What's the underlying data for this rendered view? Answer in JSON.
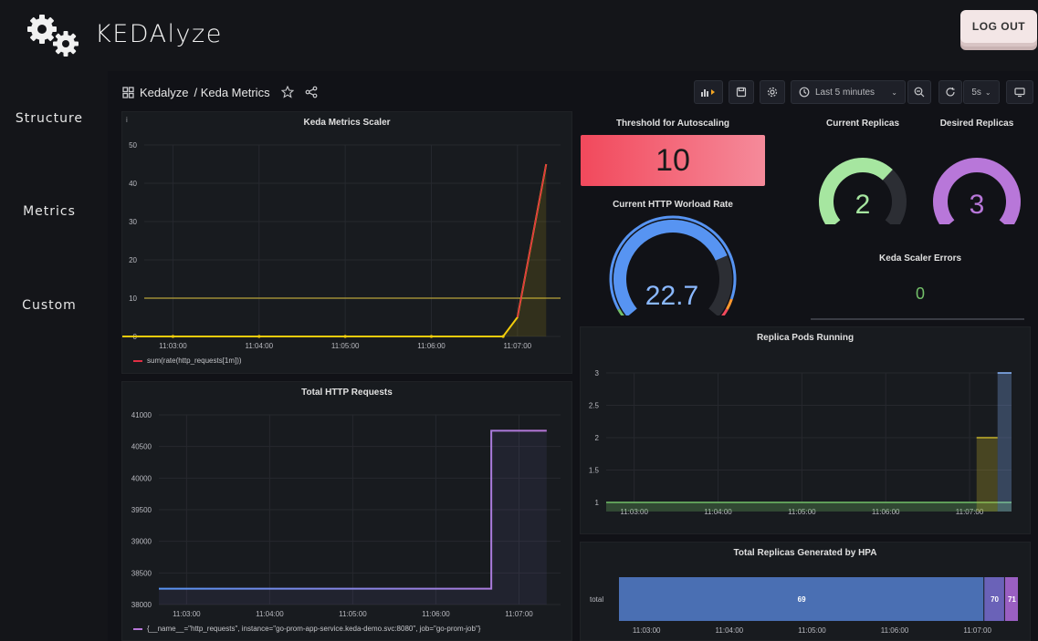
{
  "app": {
    "name": "KEDAlyze",
    "logout_label": "LOG OUT"
  },
  "sidebar": {
    "items": [
      {
        "label": "Structure"
      },
      {
        "label": "Metrics"
      },
      {
        "label": "Custom"
      }
    ]
  },
  "breadcrumb": {
    "folder": "Kedalyze",
    "dashboard": "/ Keda Metrics"
  },
  "toolbar": {
    "time_range": "Last 5 minutes",
    "refresh_interval": "5s"
  },
  "panels": {
    "scaler": {
      "title": "Keda Metrics Scaler",
      "legend": "sum(rate(http_requests[1m]))",
      "colors": {
        "series": "#f2cc0c",
        "spike": "#e02f44",
        "threshold": "#b8a33a"
      }
    },
    "threshold": {
      "title": "Threshold for Autoscaling",
      "value": "10"
    },
    "workload": {
      "title": "Current HTTP Worload Rate",
      "value": "22.7"
    },
    "current_replicas": {
      "title": "Current Replicas",
      "value": "2",
      "color": "#a6e6a0"
    },
    "desired_replicas": {
      "title": "Desired Replicas",
      "value": "3",
      "color": "#b877d9"
    },
    "errors": {
      "title": "Keda Scaler Errors",
      "value": "0"
    },
    "total_http": {
      "title": "Total HTTP Requests",
      "legend": "{__name__=\"http_requests\", instance=\"go-prom-app-service.keda-demo.svc:8080\", job=\"go-prom-job\"}"
    },
    "replica_pods": {
      "title": "Replica Pods Running"
    },
    "total_replicas": {
      "title": "Total Replicas Generated by HPA",
      "row_label": "total"
    }
  },
  "chart_data": [
    {
      "type": "line",
      "title": "Keda Metrics Scaler",
      "x_ticks": [
        "11:03:00",
        "11:04:00",
        "11:05:00",
        "11:06:00",
        "11:07:00"
      ],
      "ylim": [
        0,
        50
      ],
      "y_ticks": [
        0,
        10,
        20,
        30,
        40,
        50
      ],
      "threshold": 10,
      "series": [
        {
          "name": "sum(rate(http_requests[1m]))",
          "points": [
            [
              "11:02:00",
              0
            ],
            [
              "11:03:00",
              0
            ],
            [
              "11:04:00",
              0
            ],
            [
              "11:05:00",
              0
            ],
            [
              "11:06:00",
              0
            ],
            [
              "11:06:50",
              0
            ],
            [
              "11:07:00",
              5
            ],
            [
              "11:07:10",
              25
            ],
            [
              "11:07:20",
              45
            ]
          ]
        }
      ]
    },
    {
      "type": "line",
      "title": "Total HTTP Requests",
      "x_ticks": [
        "11:03:00",
        "11:04:00",
        "11:05:00",
        "11:06:00",
        "11:07:00"
      ],
      "ylim": [
        38000,
        41000
      ],
      "y_ticks": [
        38000,
        38500,
        39000,
        39500,
        40000,
        40500,
        41000
      ],
      "series": [
        {
          "name": "{__name__=\"http_requests\", instance=\"go-prom-app-service.keda-demo.svc:8080\", job=\"go-prom-job\"}",
          "points": [
            [
              "11:02:40",
              38250
            ],
            [
              "11:06:40",
              38250
            ],
            [
              "11:06:40",
              40750
            ],
            [
              "11:07:20",
              40750
            ]
          ]
        }
      ]
    },
    {
      "type": "area",
      "title": "Replica Pods Running",
      "x_ticks": [
        "11:03:00",
        "11:04:00",
        "11:05:00",
        "11:06:00",
        "11:07:00"
      ],
      "ylim": [
        1,
        3
      ],
      "y_ticks": [
        1,
        1.5,
        2,
        2.5,
        3
      ],
      "series": [
        {
          "points": [
            [
              "11:02:40",
              1
            ],
            [
              "11:07:05",
              1
            ],
            [
              "11:07:30",
              1
            ]
          ]
        },
        {
          "points": [
            [
              "11:07:05",
              2
            ],
            [
              "11:07:20",
              2
            ]
          ]
        },
        {
          "points": [
            [
              "11:07:20",
              3
            ],
            [
              "11:07:30",
              3
            ]
          ]
        }
      ]
    },
    {
      "type": "bar",
      "title": "Total Replicas Generated by HPA",
      "categories": [
        "total"
      ],
      "segments": [
        {
          "label": "69",
          "value": 69
        },
        {
          "label": "70",
          "value": 70
        },
        {
          "label": "71",
          "value": 71
        }
      ],
      "x_ticks": [
        "11:03:00",
        "11:04:00",
        "11:05:00",
        "11:06:00",
        "11:07:00"
      ]
    }
  ],
  "gauges": {
    "workload": {
      "value": 22.7,
      "min": 0,
      "max": 30
    },
    "current_replicas": {
      "value": 2,
      "min": 0,
      "max": 3
    },
    "desired_replicas": {
      "value": 3,
      "min": 0,
      "max": 3
    }
  }
}
